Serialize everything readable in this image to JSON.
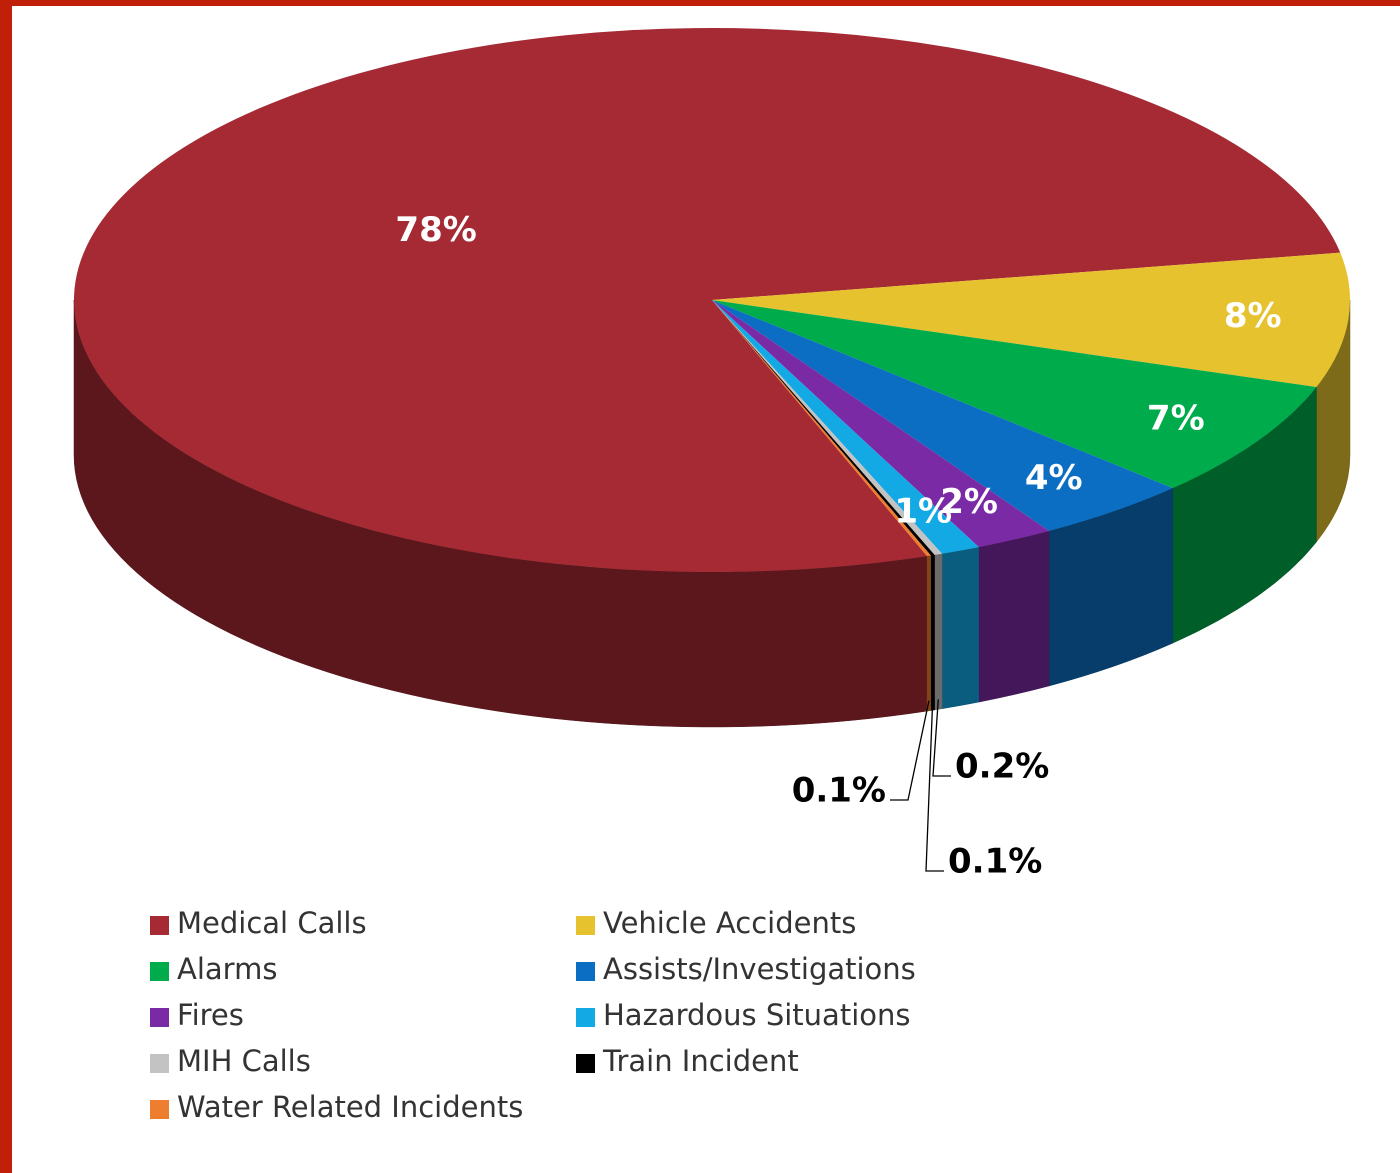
{
  "chart_data": {
    "type": "pie3d",
    "categories": [
      "Medical Calls",
      "Vehicle Accidents",
      "Alarms",
      "Assists/Investigations",
      "Fires",
      "Hazardous Situations",
      "MIH Calls",
      "Train Incident",
      "Water Related Incidents"
    ],
    "values": [
      78,
      8,
      7,
      4,
      2,
      1,
      0.2,
      0.1,
      0.1
    ],
    "value_labels": [
      "78%",
      "8%",
      "7%",
      "4%",
      "2%",
      "1%",
      "0.2%",
      "0.1%",
      "0.1%"
    ],
    "colors": [
      "#a52a33",
      "#e5c22e",
      "#00ab4b",
      "#0b6ec2",
      "#7b2aa6",
      "#13a9e5",
      "#c3c3c3",
      "#000000",
      "#ee7d2f"
    ],
    "legend": "bottom"
  }
}
